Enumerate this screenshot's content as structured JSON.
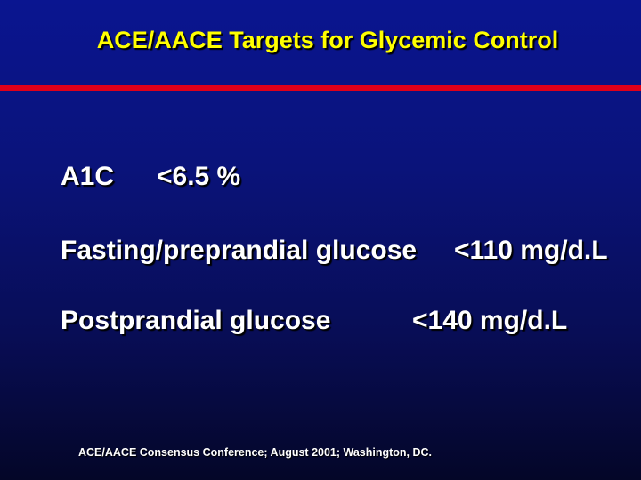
{
  "slide": {
    "title": "ACE/AACE Targets for Glycemic Control",
    "targets": [
      {
        "label": "A1C",
        "value": "<6.5 %"
      },
      {
        "label": "Fasting/preprandial glucose",
        "value": "<110 mg/d.L"
      },
      {
        "label": "Postprandial glucose",
        "value": "<140 mg/d.L"
      }
    ],
    "footnote": "ACE/AACE Consensus Conference; August 2001; Washington, DC."
  },
  "colors": {
    "background_top": "#0a1590",
    "background_bottom": "#040628",
    "title": "#ffff00",
    "rule": "#e0001a",
    "text": "#ffffff"
  }
}
